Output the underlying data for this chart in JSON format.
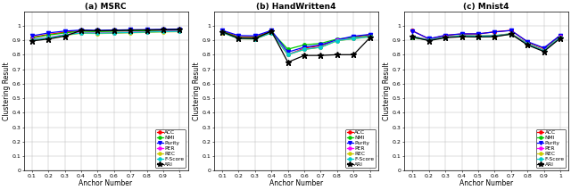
{
  "x": [
    0.1,
    0.2,
    0.3,
    0.4,
    0.5,
    0.6,
    0.7,
    0.8,
    0.9,
    1.0
  ],
  "subplots": [
    {
      "title": "(a) MSRC",
      "series": {
        "ACC": [
          0.92,
          0.94,
          0.955,
          0.965,
          0.963,
          0.965,
          0.967,
          0.968,
          0.97,
          0.972
        ],
        "NMI": [
          0.915,
          0.935,
          0.95,
          0.962,
          0.96,
          0.962,
          0.964,
          0.966,
          0.968,
          0.97
        ],
        "Purity": [
          0.93,
          0.95,
          0.963,
          0.97,
          0.968,
          0.97,
          0.972,
          0.973,
          0.975,
          0.977
        ],
        "PER": [
          0.905,
          0.918,
          0.938,
          0.952,
          0.95,
          0.952,
          0.955,
          0.958,
          0.961,
          0.963
        ],
        "REC": [
          0.9,
          0.913,
          0.933,
          0.948,
          0.946,
          0.948,
          0.951,
          0.954,
          0.957,
          0.959
        ],
        "F-Score": [
          0.902,
          0.916,
          0.936,
          0.95,
          0.948,
          0.95,
          0.953,
          0.956,
          0.959,
          0.961
        ],
        "ARI": [
          0.895,
          0.908,
          0.928,
          0.967,
          0.965,
          0.967,
          0.969,
          0.971,
          0.972,
          0.974
        ]
      },
      "ylim": [
        0.0,
        1.1
      ],
      "legend_loc": "lower right"
    },
    {
      "title": "(b) HandWritten4",
      "series": {
        "ACC": [
          0.965,
          0.923,
          0.922,
          0.963,
          0.8,
          0.845,
          0.862,
          0.902,
          0.922,
          0.938
        ],
        "NMI": [
          0.96,
          0.918,
          0.917,
          0.958,
          0.838,
          0.868,
          0.878,
          0.908,
          0.918,
          0.93
        ],
        "Purity": [
          0.968,
          0.932,
          0.93,
          0.967,
          0.818,
          0.852,
          0.868,
          0.903,
          0.928,
          0.94
        ],
        "PER": [
          0.954,
          0.912,
          0.91,
          0.952,
          0.803,
          0.838,
          0.853,
          0.898,
          0.913,
          0.926
        ],
        "REC": [
          0.952,
          0.91,
          0.908,
          0.95,
          0.8,
          0.836,
          0.851,
          0.896,
          0.91,
          0.923
        ],
        "F-Score": [
          0.953,
          0.911,
          0.909,
          0.951,
          0.801,
          0.837,
          0.852,
          0.897,
          0.911,
          0.924
        ],
        "ARI": [
          0.958,
          0.913,
          0.911,
          0.962,
          0.748,
          0.795,
          0.795,
          0.8,
          0.8,
          0.918
        ]
      },
      "ylim": [
        0.0,
        1.1
      ],
      "legend_loc": "lower right"
    },
    {
      "title": "(c) Mnist4",
      "series": {
        "ACC": [
          0.965,
          0.908,
          0.933,
          0.943,
          0.943,
          0.958,
          0.968,
          0.888,
          0.843,
          0.933
        ],
        "NMI": [
          0.918,
          0.902,
          0.922,
          0.932,
          0.93,
          0.932,
          0.945,
          0.878,
          0.831,
          0.925
        ],
        "Purity": [
          0.963,
          0.91,
          0.934,
          0.944,
          0.944,
          0.957,
          0.967,
          0.89,
          0.847,
          0.934
        ],
        "PER": [
          0.928,
          0.902,
          0.922,
          0.93,
          0.928,
          0.93,
          0.943,
          0.875,
          0.828,
          0.922
        ],
        "REC": [
          0.925,
          0.9,
          0.92,
          0.928,
          0.926,
          0.928,
          0.941,
          0.872,
          0.825,
          0.92
        ],
        "F-Score": [
          0.926,
          0.901,
          0.921,
          0.929,
          0.927,
          0.929,
          0.942,
          0.873,
          0.826,
          0.921
        ],
        "ARI": [
          0.922,
          0.897,
          0.917,
          0.924,
          0.922,
          0.924,
          0.942,
          0.867,
          0.822,
          0.914
        ]
      },
      "ylim": [
        0.0,
        1.1
      ],
      "legend_loc": "lower right"
    }
  ],
  "colors": {
    "ACC": "#FF0000",
    "NMI": "#00CC00",
    "Purity": "#0000FF",
    "PER": "#FF00FF",
    "REC": "#CCCC00",
    "F-Score": "#00CCCC",
    "ARI": "#000000"
  },
  "markers": {
    "ACC": "o",
    "NMI": "o",
    "Purity": "v",
    "PER": "o",
    "REC": "o",
    "F-Score": "o",
    "ARI": "*"
  },
  "markersize": {
    "ACC": 2.5,
    "NMI": 2.5,
    "Purity": 3.0,
    "PER": 2.5,
    "REC": 2.5,
    "F-Score": 2.5,
    "ARI": 4.5
  },
  "linewidth": 0.9,
  "xlabel": "Anchor Number",
  "ylabel": "Clustering Result",
  "yticks": [
    0.0,
    0.1,
    0.2,
    0.3,
    0.4,
    0.5,
    0.6,
    0.7,
    0.8,
    0.9,
    1.0
  ],
  "xticks": [
    0.1,
    0.2,
    0.3,
    0.4,
    0.5,
    0.6,
    0.7,
    0.8,
    0.9,
    1.0
  ],
  "xtick_labels": [
    "0.1",
    "0.2",
    "0.3",
    "0.4",
    "0.5",
    "0.6",
    "0.7",
    "0.8",
    "0.9",
    "1"
  ],
  "ytick_labels": [
    "0",
    "0.1",
    "0.2",
    "0.3",
    "0.4",
    "0.5",
    "0.6",
    "0.7",
    "0.8",
    "0.9",
    "1"
  ]
}
